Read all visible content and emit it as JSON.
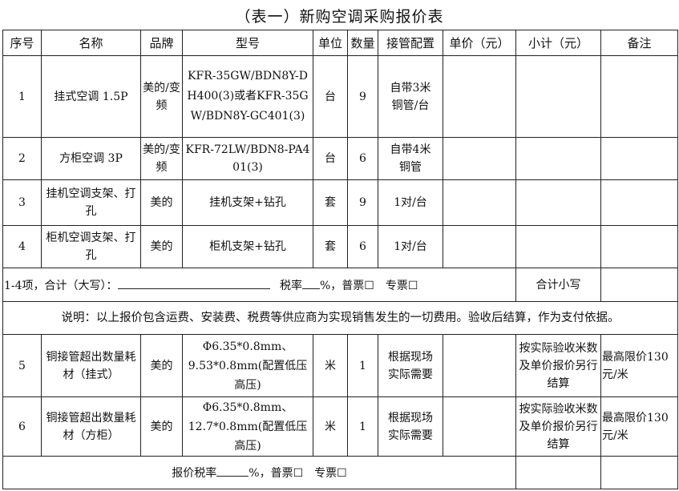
{
  "title": "（表一）新购空调采购报价表",
  "headers": [
    "序号",
    "名称",
    "品牌",
    "型号",
    "单位",
    "数量",
    "接管配置",
    "单价（元）",
    "小计（元）",
    "备注"
  ],
  "rows": [
    {
      "no": "1",
      "name": "挂式空调 1.5P",
      "brand": "美的/变频",
      "model": "KFR-35GW/BDN8Y-DH400(3)或者KFR-35GW/BDN8Y-GC401(3)",
      "unit": "台",
      "qty": "9",
      "pipe": "自带3米铜管/台",
      "price": "",
      "subtotal": "",
      "remark": ""
    },
    {
      "no": "2",
      "name": "方柜空调 3P",
      "brand": "美的/变频",
      "model": "KFR-72LW/BDN8-PA401(3)",
      "unit": "台",
      "qty": "6",
      "pipe": "自带4米铜管",
      "price": "",
      "subtotal": "",
      "remark": ""
    },
    {
      "no": "3",
      "name": "挂机空调支架、打孔",
      "brand": "美的",
      "model": "挂机支架+钻孔",
      "unit": "套",
      "qty": "9",
      "pipe": "1对/台",
      "price": "",
      "subtotal": "",
      "remark": ""
    },
    {
      "no": "4",
      "name": "柜机空调支架、打孔",
      "brand": "美的",
      "model": "柜机支架+钻孔",
      "unit": "套",
      "qty": "6",
      "pipe": "1对/台",
      "price": "",
      "subtotal": "",
      "remark": ""
    }
  ],
  "total_row": {
    "label": "1-4项，合计（大写）：",
    "tax_label": "税率",
    "tax_suffix": "%，普票☐　专票☐",
    "small_total_label": "合计小写"
  },
  "note": "说明：以上报价包含运费、安装费、税费等供应商为实现销售发生的一切费用。验收后结算，作为支付依据。",
  "extra_rows": [
    {
      "no": "5",
      "name": "铜接管超出数量耗材（挂式）",
      "brand": "美的",
      "model": "Φ6.35*0.8mm、9.53*0.8mm(配置低压高压)",
      "unit": "米",
      "qty": "1",
      "pipe": "根据现场实际需要",
      "price": "",
      "subtotal": "按实际验收米数及单价报价另行结算",
      "remark": "最高限价130元/米"
    },
    {
      "no": "6",
      "name": "铜接管超出数量耗材（方柜）",
      "brand": "美的",
      "model": "Φ6.35*0.8mm、12.7*0.8mm(配置低压高压)",
      "unit": "米",
      "qty": "1",
      "pipe": "根据现场实际需要",
      "price": "",
      "subtotal": "按实际验收米数及单价报价另行结算",
      "remark": "最高限价130元/米"
    }
  ],
  "footer_row": {
    "label": "报价税率",
    "suffix": "%，普票☐　专票☐"
  }
}
